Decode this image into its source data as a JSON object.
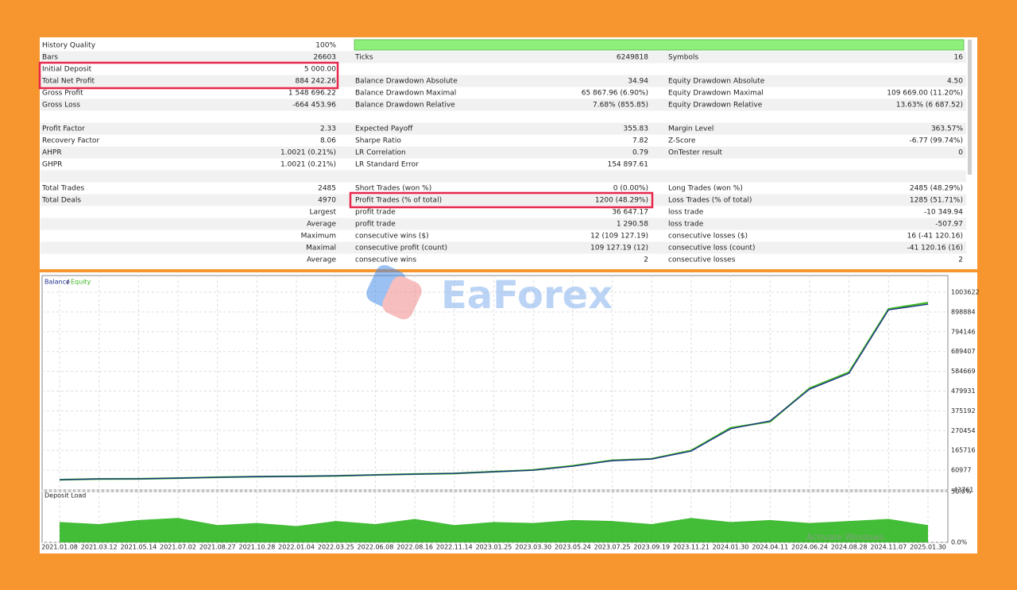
{
  "report": {
    "rows": [
      [
        "History Quality",
        "100%",
        null,
        null,
        null,
        null
      ],
      [
        "Bars",
        "26603",
        "Ticks",
        "6249818",
        "Symbols",
        "16"
      ],
      [
        "Initial Deposit",
        "5 000.00",
        null,
        null,
        null,
        null
      ],
      [
        "Total Net Profit",
        "884 242.26",
        "Balance Drawdown Absolute",
        "34.94",
        "Equity Drawdown Absolute",
        "4.50"
      ],
      [
        "Gross Profit",
        "1 548 696.22",
        "Balance Drawdown Maximal",
        "65 867.96 (6.90%)",
        "Equity Drawdown Maximal",
        "109 669.00 (11.20%)"
      ],
      [
        "Gross Loss",
        "-664 453.96",
        "Balance Drawdown Relative",
        "7.68% (855.85)",
        "Equity Drawdown Relative",
        "13.63% (6 687.52)"
      ],
      [
        null,
        null,
        null,
        null,
        null,
        null
      ],
      [
        "Profit Factor",
        "2.33",
        "Expected Payoff",
        "355.83",
        "Margin Level",
        "363.57%"
      ],
      [
        "Recovery Factor",
        "8.06",
        "Sharpe Ratio",
        "7.82",
        "Z-Score",
        "-6.77 (99.74%)"
      ],
      [
        "AHPR",
        "1.0021 (0.21%)",
        "LR Correlation",
        "0.79",
        "OnTester result",
        "0"
      ],
      [
        "GHPR",
        "1.0021 (0.21%)",
        "LR Standard Error",
        "154 897.61",
        null,
        null
      ],
      [
        null,
        null,
        null,
        null,
        null,
        null
      ],
      [
        "Total Trades",
        "2485",
        "Short Trades (won %)",
        "0 (0.00%)",
        "Long Trades (won %)",
        "2485 (48.29%)"
      ],
      [
        "Total Deals",
        "4970",
        "Profit Trades (% of total)",
        "1200 (48.29%)",
        "Loss Trades (% of total)",
        "1285 (51.71%)"
      ],
      [
        null,
        "Largest",
        "profit trade",
        "36 647.17",
        "loss trade",
        "-10 349.94"
      ],
      [
        null,
        "Average",
        "profit trade",
        "1 290.58",
        "loss trade",
        "-507.97"
      ],
      [
        null,
        "Maximum",
        "consecutive wins ($)",
        "12 (109 127.19)",
        "consecutive losses ($)",
        "16 (-41 120.16)"
      ],
      [
        null,
        "Maximal",
        "consecutive profit (count)",
        "109 127.19 (12)",
        "consecutive loss (count)",
        "-41 120.16 (16)"
      ],
      [
        null,
        "Average",
        "consecutive wins",
        "2",
        "consecutive losses",
        "2"
      ]
    ]
  },
  "watermark": "EaForex",
  "os_watermark": "Activate Windows",
  "chart_data": [
    {
      "type": "line",
      "categories": [
        "2021.01.08",
        "2021.03.12",
        "2021.05.14",
        "2021.07.02",
        "2021.08.27",
        "2021.10.28",
        "2022.01.04",
        "2022.03.25",
        "2022.06.08",
        "2022.08.16",
        "2022.11.14",
        "2023.01.25",
        "2023.03.30",
        "2023.05.24",
        "2023.07.25",
        "2023.09.19",
        "2023.11.21",
        "2024.01.30",
        "2024.04.11",
        "2024.06.24",
        "2024.08.28",
        "2024.11.07",
        "2025.01.30"
      ],
      "series": [
        {
          "name": "Balance",
          "color": "#1f2f8f",
          "values": [
            10500,
            14700,
            15000,
            19000,
            23000,
            27000,
            28000,
            31500,
            35700,
            40000,
            44000,
            52500,
            61000,
            82000,
            111000,
            120000,
            162000,
            280000,
            322000,
            490000,
            574000,
            910000,
            940000
          ]
        },
        {
          "name": "Equity",
          "color": "#3cb521",
          "values": [
            10500,
            14500,
            15200,
            18800,
            23500,
            26800,
            28500,
            31000,
            36000,
            40500,
            43500,
            53000,
            62000,
            84000,
            113000,
            121000,
            165000,
            285000,
            318000,
            495000,
            580000,
            915000,
            948000
          ]
        }
      ],
      "ylim": [
        -43761,
        1092000
      ],
      "yticks": [
        -43761,
        60977,
        165716,
        270454,
        375192,
        479931,
        584669,
        689407,
        794146,
        898884,
        1003622
      ],
      "grid": true
    },
    {
      "type": "area",
      "title": "Deposit Load",
      "color": "#22b014",
      "values": [
        20,
        18,
        22,
        24,
        17,
        19,
        16,
        21,
        18,
        23,
        17,
        20,
        19,
        22,
        21,
        18,
        24,
        20,
        22,
        19,
        21,
        23,
        17
      ],
      "ylim": [
        0,
        50
      ],
      "yticks": [
        {
          "value": 0,
          "label": "0.0%"
        },
        {
          "value": 50,
          "label": "50.0%"
        }
      ],
      "grid": true
    }
  ]
}
